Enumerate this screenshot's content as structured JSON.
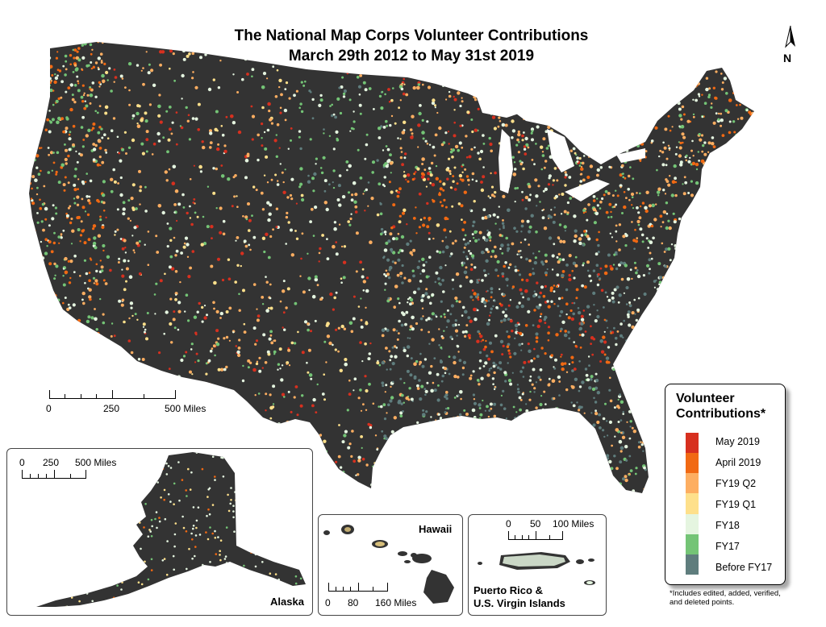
{
  "title": {
    "line1": "The National Map Corps Volunteer Contributions",
    "line2": "March 29th 2012 to May 31st 2019"
  },
  "north_arrow": {
    "label": "N"
  },
  "scale_main": {
    "ticks": [
      "0",
      "250",
      "500 Miles"
    ]
  },
  "insets": {
    "alaska": {
      "label": "Alaska",
      "scale_ticks": [
        "0",
        "250",
        "500 Miles"
      ]
    },
    "hawaii": {
      "label": "Hawaii",
      "scale_ticks": [
        "0",
        "80",
        "160 Miles"
      ]
    },
    "puerto_rico": {
      "label_line1": "Puerto Rico &",
      "label_line2": "U.S. Virgin Islands",
      "scale_ticks": [
        "0",
        "50",
        "100 Miles"
      ]
    }
  },
  "legend": {
    "title_line1": "Volunteer",
    "title_line2": "Contributions*",
    "items": [
      {
        "label": "May 2019",
        "color": "#d7301f"
      },
      {
        "label": "April 2019",
        "color": "#f16913"
      },
      {
        "label": "FY19  Q2",
        "color": "#fdae61"
      },
      {
        "label": "FY19 Q1",
        "color": "#fee08b"
      },
      {
        "label": "FY18",
        "color": "#e5f5e0"
      },
      {
        "label": "FY17",
        "color": "#74c476"
      },
      {
        "label": "Before FY17",
        "color": "#5f7d7d"
      }
    ]
  },
  "footnote": {
    "line1": "*Includes edited, added, verified,",
    "line2": "and deleted points."
  },
  "map_colors": {
    "land": "#333333",
    "border": "#6b6b6b"
  }
}
